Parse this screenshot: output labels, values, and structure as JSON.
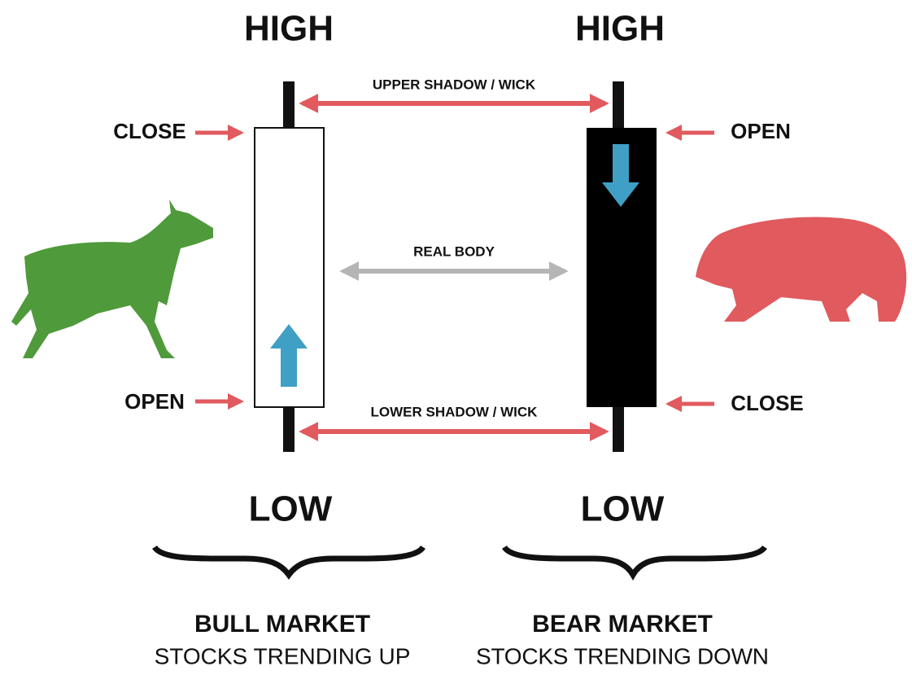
{
  "bull": {
    "high": "HIGH",
    "close": "CLOSE",
    "open": "OPEN",
    "low": "LOW",
    "title": "BULL MARKET",
    "subtitle": "STOCKS TRENDING UP"
  },
  "bear": {
    "high": "HIGH",
    "open": "OPEN",
    "close": "CLOSE",
    "low": "LOW",
    "title": "BEAR MARKET",
    "subtitle": "STOCKS TRENDING DOWN"
  },
  "labels": {
    "upper": "UPPER SHADOW / WICK",
    "body": "REAL BODY",
    "lower": "LOWER SHADOW / WICK"
  }
}
